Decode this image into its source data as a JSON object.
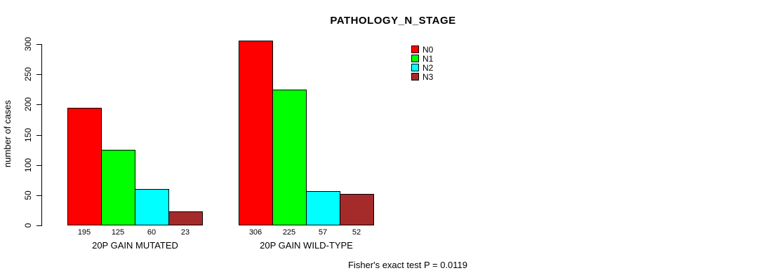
{
  "chart_data": {
    "type": "bar",
    "title": "PATHOLOGY_N_STAGE",
    "ylabel": "number of cases",
    "xlabel": "",
    "ylim": [
      0,
      300
    ],
    "yticks": [
      0,
      50,
      100,
      150,
      200,
      250,
      300
    ],
    "categories": [
      "20P GAIN MUTATED",
      "20P GAIN WILD-TYPE"
    ],
    "series": [
      {
        "name": "N0",
        "color": "#FF0000",
        "values": [
          195,
          306
        ]
      },
      {
        "name": "N1",
        "color": "#00FF00",
        "values": [
          125,
          225
        ]
      },
      {
        "name": "N2",
        "color": "#00FFFF",
        "values": [
          60,
          57
        ]
      },
      {
        "name": "N3",
        "color": "#A52A2A",
        "values": [
          23,
          52
        ]
      }
    ],
    "bar_value_labels": [
      [
        "195",
        "125",
        "60",
        "23"
      ],
      [
        "306",
        "225",
        "57",
        "52"
      ]
    ],
    "legend_entries": [
      "N0",
      "N1",
      "N2",
      "N3"
    ],
    "legend_position": "top-right",
    "grid": false,
    "annotation": "Fisher's exact test P = 0.0119"
  }
}
